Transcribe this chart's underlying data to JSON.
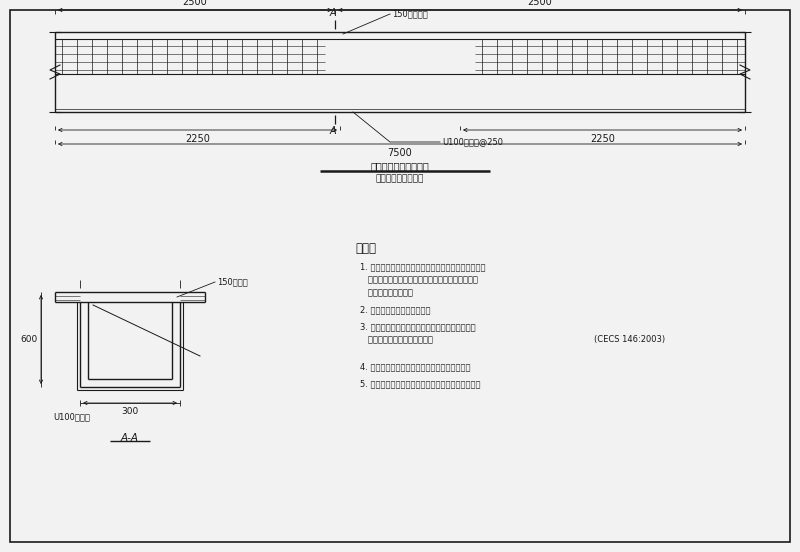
{
  "bg_color": "#f2f2f2",
  "line_color": "#000000",
  "title1": "梁抗剪补强加固示意图",
  "title2": "粘贴Ｕ型碳纤维箍条",
  "section_label": "A-A",
  "notes_title": "说明：",
  "dim_2500": "2500",
  "dim_2250": "2250",
  "dim_7500": "7500",
  "dim_600": "600",
  "dim_300": "300",
  "label_150_top": "150碳纤维布",
  "label_150_sect": "150碳纤维",
  "label_u100_top": "U100碳纤维@250",
  "label_u100_sect": "U100碳纤维",
  "cecs_ref": "(CECS 146:2003)"
}
